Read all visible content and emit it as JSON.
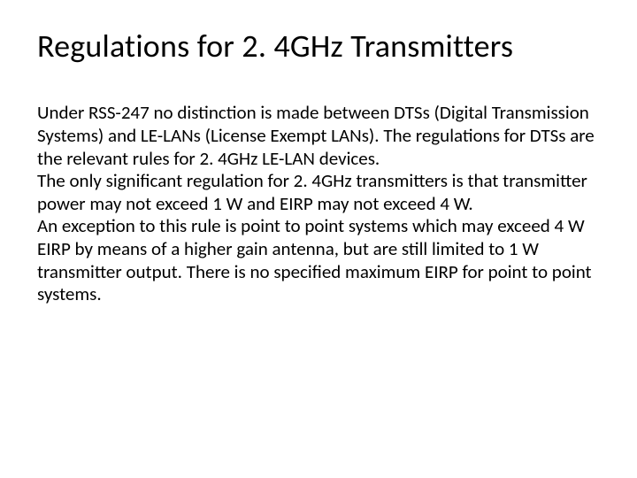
{
  "slide": {
    "title": "Regulations for 2. 4GHz Transmitters",
    "paragraphs": [
      "Under RSS-247 no distinction is made between DTSs (Digital Transmission Systems) and LE-LANs (License Exempt LANs). The regulations for DTSs are the relevant rules for 2. 4GHz LE-LAN devices.",
      "The only significant regulation for 2. 4GHz transmitters is that transmitter power may not exceed 1 W and EIRP may not exceed 4 W.",
      "An exception to this rule is point to point systems which may exceed 4 W EIRP by means of a higher gain antenna, but are still limited to 1 W transmitter output. There is no specified maximum EIRP for point to point systems."
    ]
  },
  "style": {
    "background_color": "#ffffff",
    "text_color": "#000000",
    "title_fontsize": 36,
    "title_fontweight": 400,
    "body_fontsize": 21,
    "body_lineheight": 1.22,
    "font_family": "Calibri, 'Segoe UI', Arial, sans-serif",
    "slide_width": 720,
    "slide_height": 540,
    "padding": "32px 42px 40px 42px"
  }
}
